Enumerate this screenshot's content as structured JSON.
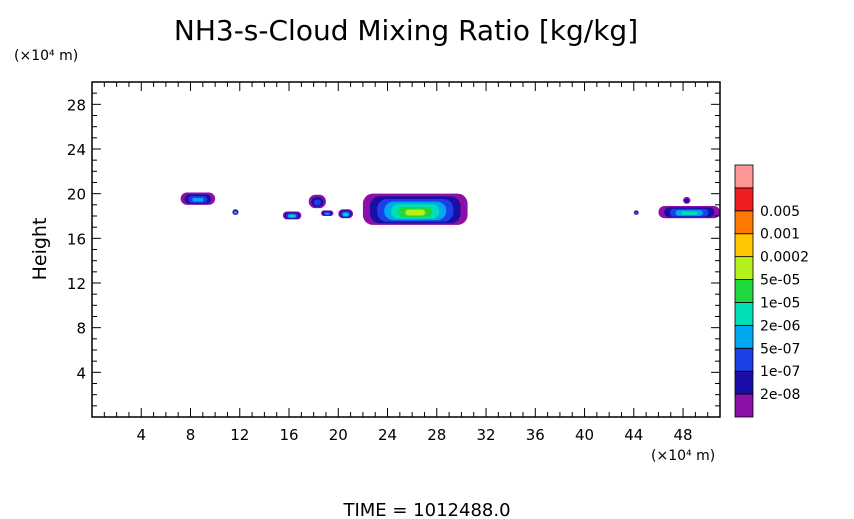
{
  "chart_data": {
    "type": "heatmap",
    "title": "NH3-s-Cloud Mixing Ratio [kg/kg]",
    "xlabel": "",
    "ylabel": "Height",
    "x_unit": "(×10⁴ m)",
    "y_unit": "(×10⁴ m)",
    "footer": "TIME = 1012488.0",
    "xlim": [
      0,
      51
    ],
    "ylim": [
      0,
      30
    ],
    "x_ticks": [
      4,
      8,
      12,
      16,
      20,
      24,
      28,
      32,
      36,
      40,
      44,
      48
    ],
    "y_ticks": [
      4,
      8,
      12,
      16,
      20,
      24,
      28
    ],
    "x_minor_step": 1,
    "y_minor_step": 1,
    "grid": false,
    "colorbar": {
      "levels": [
        "2e-08",
        "1e-07",
        "5e-07",
        "2e-06",
        "1e-05",
        "5e-05",
        "0.0002",
        "0.001",
        "0.005"
      ],
      "colors": [
        "#8a10a8",
        "#1a0ea6",
        "#1c3fe8",
        "#00a8f0",
        "#00e0b4",
        "#1ed83c",
        "#b4f01a",
        "#ffc800",
        "#ff7a00",
        "#f01e1e",
        "#ff9696"
      ]
    },
    "cloud_regions": [
      {
        "x": [
          7.2,
          10.0
        ],
        "y": [
          19.0,
          20.1
        ],
        "max_level": 3
      },
      {
        "x": [
          11.4,
          11.9
        ],
        "y": [
          18.1,
          18.6
        ],
        "max_level": 4
      },
      {
        "x": [
          15.5,
          17.0
        ],
        "y": [
          17.7,
          18.4
        ],
        "max_level": 4
      },
      {
        "x": [
          17.6,
          19.0
        ],
        "y": [
          18.7,
          19.9
        ],
        "max_level": 2
      },
      {
        "x": [
          18.6,
          19.6
        ],
        "y": [
          18.0,
          18.5
        ],
        "max_level": 3
      },
      {
        "x": [
          20.0,
          21.2
        ],
        "y": [
          17.8,
          18.6
        ],
        "max_level": 4
      },
      {
        "x": [
          22.0,
          30.5
        ],
        "y": [
          17.2,
          20.0
        ],
        "max_level": 6
      },
      {
        "x": [
          44.0,
          44.4
        ],
        "y": [
          18.1,
          18.5
        ],
        "max_level": 3
      },
      {
        "x": [
          46.0,
          51.0
        ],
        "y": [
          17.8,
          18.9
        ],
        "max_level": 4
      },
      {
        "x": [
          48.0,
          48.6
        ],
        "y": [
          19.1,
          19.7
        ],
        "max_level": 1
      }
    ]
  }
}
